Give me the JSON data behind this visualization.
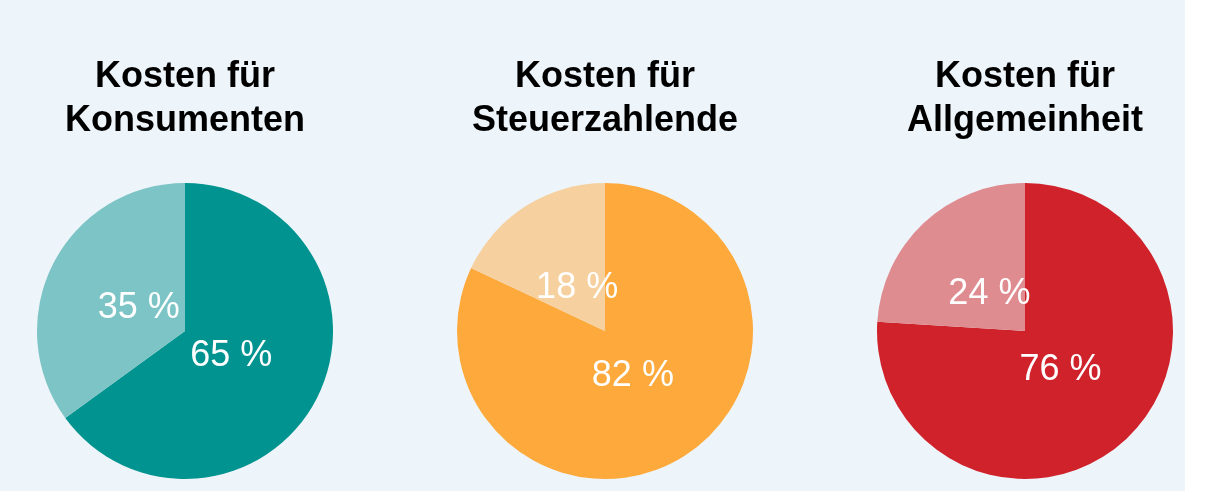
{
  "chart_data": [
    {
      "type": "pie",
      "title": "Kosten für\nKonsumenten",
      "categories": [
        null,
        null
      ],
      "values": [
        65,
        35
      ],
      "colors": [
        "#00938f",
        "#7cc4c5"
      ],
      "value_labels": [
        "65 %",
        "35 %"
      ]
    },
    {
      "type": "pie",
      "title": "Kosten für\nSteuerzahlende",
      "categories": [
        null,
        null
      ],
      "values": [
        82,
        18
      ],
      "colors": [
        "#fda93c",
        "#f6d19f"
      ],
      "value_labels": [
        "82 %",
        "18 %"
      ]
    },
    {
      "type": "pie",
      "title": "Kosten für\nAllgemeinheit",
      "categories": [
        null,
        null
      ],
      "values": [
        76,
        24
      ],
      "colors": [
        "#cf222b",
        "#df8c91"
      ],
      "value_labels": [
        "76 %",
        "24 %"
      ]
    }
  ]
}
